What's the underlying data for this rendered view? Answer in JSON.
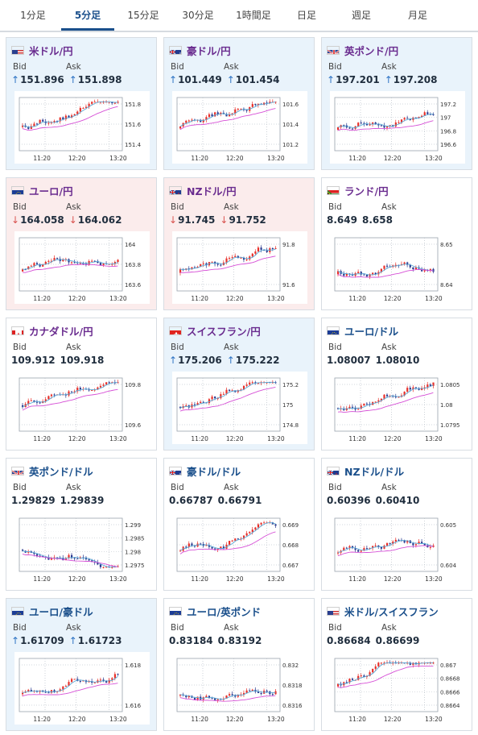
{
  "tabs": [
    {
      "label": "1分足",
      "active": false
    },
    {
      "label": "5分足",
      "active": true
    },
    {
      "label": "15分足",
      "active": false
    },
    {
      "label": "30分足",
      "active": false
    },
    {
      "label": "1時間足",
      "active": false
    },
    {
      "label": "日足",
      "active": false
    },
    {
      "label": "週足",
      "active": false
    },
    {
      "label": "月足",
      "active": false
    }
  ],
  "labels": {
    "bid": "Bid",
    "ask": "Ask"
  },
  "colors": {
    "up_candle": "#e8302a",
    "down_candle": "#2b3a8f",
    "ma_fast": "#5aa9d6",
    "ma_slow": "#d64fd6",
    "tab_active": "#1a4f8b",
    "pair_purple": "#6a2c8f",
    "pair_blue": "#1a4f8b"
  },
  "cards": [
    {
      "pair": "米ドル/円",
      "flag": "us",
      "state": "up",
      "bid": "151.896",
      "ask": "151.898",
      "ticks": [
        "151.8",
        "151.6",
        "151.4"
      ],
      "xticks": [
        "11:20",
        "12:20",
        "13:20"
      ]
    },
    {
      "pair": "豪ドル/円",
      "flag": "au",
      "state": "up",
      "bid": "101.449",
      "ask": "101.454",
      "ticks": [
        "101.6",
        "101.4",
        "101.2"
      ],
      "xticks": [
        "11:20",
        "12:20",
        "13:20"
      ]
    },
    {
      "pair": "英ポンド/円",
      "flag": "gb",
      "state": "up",
      "bid": "197.201",
      "ask": "197.208",
      "ticks": [
        "197.2",
        "197",
        "196.8",
        "196.6"
      ],
      "xticks": [
        "11:20",
        "12:20",
        "13:20"
      ]
    },
    {
      "pair": "ユーロ/円",
      "flag": "eu",
      "state": "down",
      "bid": "164.058",
      "ask": "164.062",
      "ticks": [
        "164",
        "163.8",
        "163.6"
      ],
      "xticks": [
        "11:20",
        "12:20",
        "13:20"
      ]
    },
    {
      "pair": "NZドル/円",
      "flag": "nz",
      "state": "down",
      "bid": "91.745",
      "ask": "91.752",
      "ticks": [
        "91.8",
        "91.6"
      ],
      "xticks": [
        "11:20",
        "12:20",
        "13:20"
      ]
    },
    {
      "pair": "ランド/円",
      "flag": "za",
      "state": "flat",
      "bid": "8.649",
      "ask": "8.658",
      "ticks": [
        "8.65",
        "8.64"
      ],
      "xticks": [
        "11:20",
        "12:20",
        "13:20"
      ]
    },
    {
      "pair": "カナダドル/円",
      "flag": "ca",
      "state": "flat",
      "bid": "109.912",
      "ask": "109.918",
      "ticks": [
        "109.8",
        "109.6"
      ],
      "xticks": [
        "11:20",
        "12:20",
        "13:20"
      ]
    },
    {
      "pair": "スイスフラン/円",
      "flag": "ch",
      "state": "up",
      "bid": "175.206",
      "ask": "175.222",
      "ticks": [
        "175.2",
        "175",
        "174.8"
      ],
      "xticks": [
        "11:20",
        "12:20",
        "13:20"
      ]
    },
    {
      "pair": "ユーロ/ドル",
      "flag": "euus",
      "state": "flat",
      "bid": "1.08007",
      "ask": "1.08010",
      "ticks": [
        "1.0805",
        "1.08",
        "1.0795"
      ],
      "xticks": [
        "11:20",
        "12:20",
        "13:20"
      ]
    },
    {
      "pair": "英ポンド/ドル",
      "flag": "gbus",
      "state": "flat",
      "bid": "1.29829",
      "ask": "1.29839",
      "ticks": [
        "1.299",
        "1.2985",
        "1.298",
        "1.2975"
      ],
      "xticks": [
        "11:20",
        "12:20",
        "13:20"
      ]
    },
    {
      "pair": "豪ドル/ドル",
      "flag": "auus",
      "state": "flat",
      "bid": "0.66787",
      "ask": "0.66791",
      "ticks": [
        "0.669",
        "0.668",
        "0.667"
      ],
      "xticks": [
        "11:20",
        "12:20",
        "13:20"
      ]
    },
    {
      "pair": "NZドル/ドル",
      "flag": "nzus",
      "state": "flat",
      "bid": "0.60396",
      "ask": "0.60410",
      "ticks": [
        "0.605",
        "0.604"
      ],
      "xticks": [
        "11:20",
        "12:20",
        "13:20"
      ]
    },
    {
      "pair": "ユーロ/豪ドル",
      "flag": "euau",
      "state": "up",
      "bid": "1.61709",
      "ask": "1.61723",
      "ticks": [
        "1.618",
        "1.616"
      ],
      "xticks": [
        "11:20",
        "12:20",
        "13:20"
      ]
    },
    {
      "pair": "ユーロ/英ポンド",
      "flag": "eugb",
      "state": "flat",
      "bid": "0.83184",
      "ask": "0.83192",
      "ticks": [
        "0.832",
        "0.8318",
        "0.8316"
      ],
      "xticks": [
        "11:20",
        "12:20",
        "13:20"
      ]
    },
    {
      "pair": "米ドル/スイスフラン",
      "flag": "usch",
      "state": "flat",
      "bid": "0.86684",
      "ask": "0.86699",
      "ticks": [
        "0.867",
        "0.8668",
        "0.8666",
        "0.8664"
      ],
      "xticks": [
        "11:20",
        "12:20",
        "13:20"
      ]
    }
  ]
}
